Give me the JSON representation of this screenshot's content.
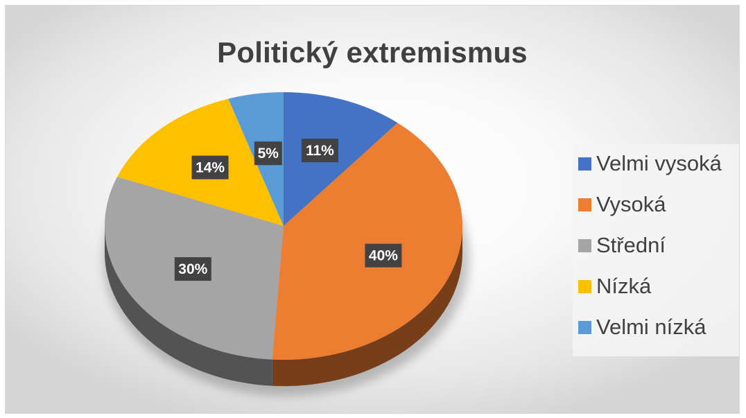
{
  "chart_data": {
    "type": "pie",
    "title": "Politický extremismus",
    "categories": [
      "Velmi vysoká",
      "Vysoká",
      "Střední",
      "Nízká",
      "Velmi nízká"
    ],
    "values": [
      11,
      40,
      30,
      14,
      5
    ],
    "data_labels": [
      "11%",
      "40%",
      "30%",
      "14%",
      "5%"
    ],
    "colors": [
      "#4472c4",
      "#ed7d31",
      "#a5a5a5",
      "#ffc000",
      "#5b9bd5"
    ],
    "legend_position": "right",
    "style": "3d-pie"
  }
}
